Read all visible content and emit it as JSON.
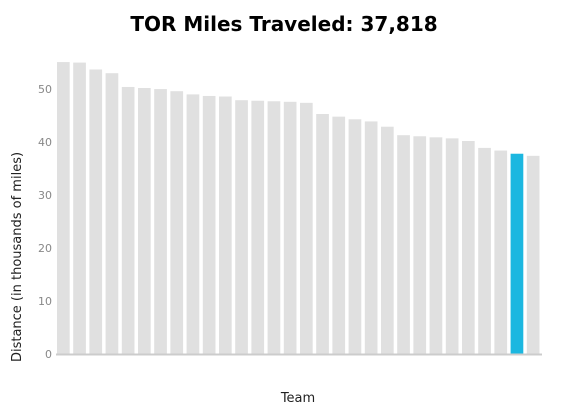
{
  "chart_data": {
    "type": "bar",
    "title": "TOR Miles Traveled: 37,818",
    "xlabel": "Team",
    "ylabel": "Distance (in thousands of miles)",
    "ylim": [
      0,
      57
    ],
    "yticks": [
      0,
      10,
      20,
      30,
      40,
      50
    ],
    "grid": false,
    "values": [
      55.1,
      55.0,
      53.7,
      53.0,
      50.4,
      50.2,
      50.0,
      49.6,
      49.0,
      48.7,
      48.6,
      47.9,
      47.8,
      47.7,
      47.6,
      47.4,
      45.3,
      44.8,
      44.3,
      43.9,
      42.9,
      41.3,
      41.1,
      40.9,
      40.7,
      40.2,
      38.9,
      38.4,
      37.8,
      37.4
    ],
    "highlight_index": 28,
    "bar_color": "#e0e0e0",
    "highlight_color": "#1cb7e0",
    "axis_color": "#cccccc"
  }
}
